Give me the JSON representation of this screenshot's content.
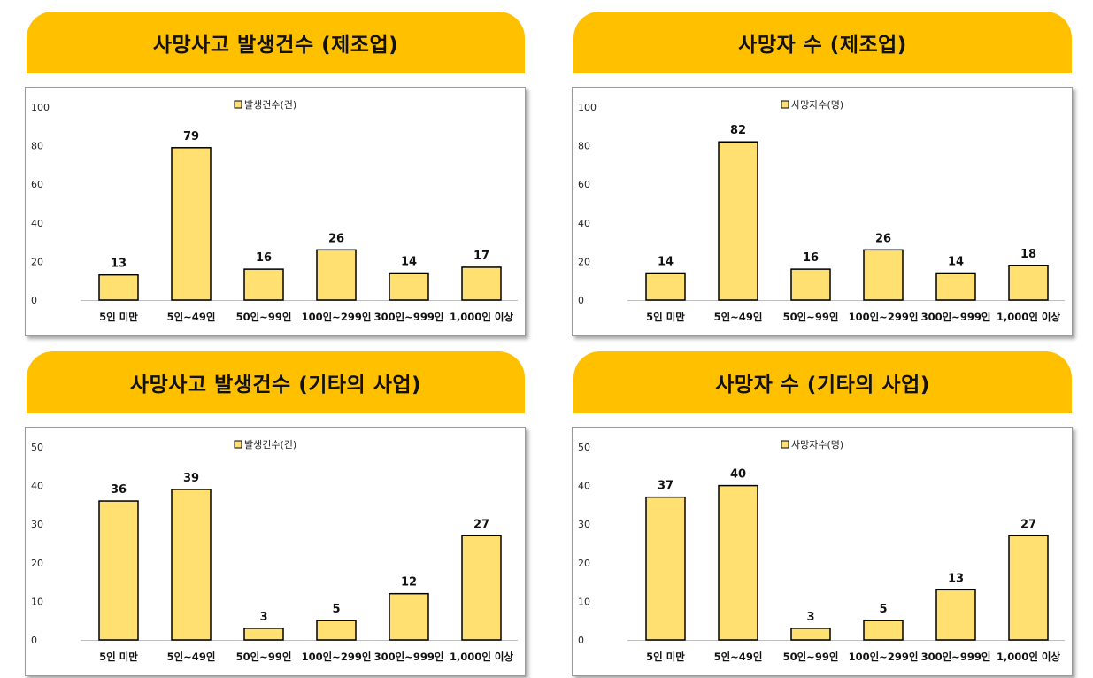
{
  "colors": {
    "header": "#FFC000",
    "bar_fill": "#FFE070",
    "bar_stroke": "#000000"
  },
  "chart_data": [
    {
      "type": "bar",
      "title": "사망사고 발생건수 (제조업)",
      "categories": [
        "5인 미만",
        "5인~49인",
        "50인~99인",
        "100인~299인",
        "300인~999인",
        "1,000인 이상"
      ],
      "series": [
        {
          "name": "발생건수(건)",
          "values": [
            13,
            79,
            16,
            26,
            14,
            17
          ]
        }
      ],
      "ylim": [
        0,
        100
      ],
      "yticks": [
        0,
        20,
        40,
        60,
        80,
        100
      ],
      "grid": false,
      "legend": "top"
    },
    {
      "type": "bar",
      "title": "사망자 수 (제조업)",
      "categories": [
        "5인 미만",
        "5인~49인",
        "50인~99인",
        "100인~299인",
        "300인~999인",
        "1,000인 이상"
      ],
      "series": [
        {
          "name": "사망자수(명)",
          "values": [
            14,
            82,
            16,
            26,
            14,
            18
          ]
        }
      ],
      "ylim": [
        0,
        100
      ],
      "yticks": [
        0,
        20,
        40,
        60,
        80,
        100
      ],
      "grid": false,
      "legend": "top"
    },
    {
      "type": "bar",
      "title": "사망사고 발생건수 (기타의 사업)",
      "categories": [
        "5인 미만",
        "5인~49인",
        "50인~99인",
        "100인~299인",
        "300인~999인",
        "1,000인 이상"
      ],
      "series": [
        {
          "name": "발생건수(건)",
          "values": [
            36,
            39,
            3,
            5,
            12,
            27
          ]
        }
      ],
      "ylim": [
        0,
        50
      ],
      "yticks": [
        0,
        10,
        20,
        30,
        40,
        50
      ],
      "grid": false,
      "legend": "top"
    },
    {
      "type": "bar",
      "title": "사망자 수 (기타의 사업)",
      "categories": [
        "5인 미만",
        "5인~49인",
        "50인~99인",
        "100인~299인",
        "300인~999인",
        "1,000인 이상"
      ],
      "series": [
        {
          "name": "사망자수(명)",
          "values": [
            37,
            40,
            3,
            5,
            13,
            27
          ]
        }
      ],
      "ylim": [
        0,
        50
      ],
      "yticks": [
        0,
        10,
        20,
        30,
        40,
        50
      ],
      "grid": false,
      "legend": "top"
    }
  ]
}
